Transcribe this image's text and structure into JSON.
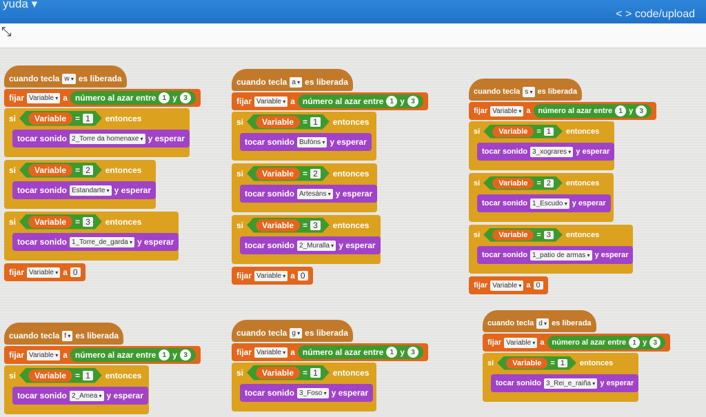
{
  "topbar": {
    "menu_help": "yuda ▾",
    "code_link": "< > code/upload"
  },
  "toolbar": {
    "tool_icon": "cursor-tool-icon"
  },
  "labels": {
    "when_key": "cuando tecla",
    "released": "es liberada",
    "set": "fijar",
    "to": "a",
    "random": "número al azar entre",
    "and": "y",
    "rand_min": "1",
    "rand_max": "3",
    "if": "si",
    "variable": "Variable",
    "equals": "=",
    "then": "entonces",
    "play": "tocar sonido",
    "until_done": "y esperar",
    "reset_value": "0"
  },
  "colors": {
    "header": "#1f72c8",
    "events": "#c27a2a",
    "data": "#e2661c",
    "operators": "#3c9a2e",
    "control": "#dca11f",
    "sound": "#a043c8"
  },
  "scripts": [
    {
      "key": "w",
      "sounds": [
        "2_Torre da homenaxe",
        "Estandarte",
        "1_Torre_de_garda"
      ]
    },
    {
      "key": "a",
      "sounds": [
        "Bufóns",
        "Artesáns",
        "2_Muralla"
      ]
    },
    {
      "key": "s",
      "sounds": [
        "3_xograres",
        "1_Escudo",
        "1_patio de armas"
      ]
    },
    {
      "key": "f",
      "sounds": [
        "2_Amea"
      ]
    },
    {
      "key": "g",
      "sounds": [
        "3_Foso"
      ]
    },
    {
      "key": "d",
      "sounds": [
        "3_Rei_e_raiña"
      ]
    }
  ]
}
